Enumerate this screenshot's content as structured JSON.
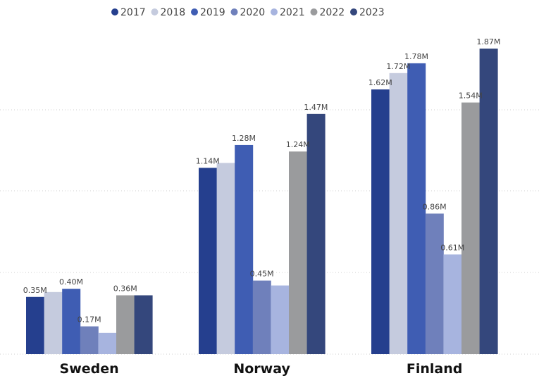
{
  "chart_data": {
    "type": "bar",
    "categories": [
      "Sweden",
      "Norway",
      "Finland"
    ],
    "series": [
      {
        "name": "2017",
        "color": "#253f8e",
        "values": [
          0.35,
          1.14,
          1.62
        ]
      },
      {
        "name": "2018",
        "color": "#c5cbde",
        "values": [
          0.38,
          1.17,
          1.72
        ]
      },
      {
        "name": "2019",
        "color": "#3f5db3",
        "values": [
          0.4,
          1.28,
          1.78
        ]
      },
      {
        "name": "2020",
        "color": "#6f80bb",
        "values": [
          0.17,
          0.45,
          0.86
        ]
      },
      {
        "name": "2021",
        "color": "#a7b4df",
        "values": [
          0.13,
          0.42,
          0.61
        ]
      },
      {
        "name": "2022",
        "color": "#9a9b9d",
        "values": [
          0.36,
          1.24,
          1.54
        ]
      },
      {
        "name": "2023",
        "color": "#34477c",
        "values": [
          0.36,
          1.47,
          1.87
        ]
      }
    ],
    "data_labels": [
      [
        "0.35M",
        "",
        "0.40M",
        "0.17M",
        "",
        "0.36M",
        ""
      ],
      [
        "1.14M",
        "",
        "1.28M",
        "0.45M",
        "",
        "1.24M",
        "1.47M"
      ],
      [
        "1.62M",
        "1.72M",
        "1.78M",
        "0.86M",
        "0.61M",
        "1.54M",
        "1.87M"
      ]
    ],
    "ylim": [
      0,
      1.87
    ],
    "grid": true,
    "legend_position": "top"
  }
}
